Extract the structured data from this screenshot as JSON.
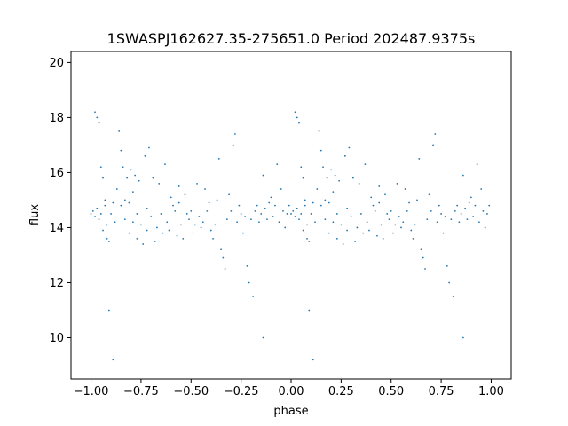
{
  "chart_data": {
    "type": "scatter",
    "title": "1SWASPJ162627.35-275651.0 Period 202487.9375s",
    "xlabel": "phase",
    "ylabel": "flux",
    "xlim": [
      -1.1,
      1.1
    ],
    "ylim": [
      8.5,
      20.4
    ],
    "xticks": [
      -1.0,
      -0.75,
      -0.5,
      -0.25,
      0.0,
      0.25,
      0.5,
      0.75,
      1.0
    ],
    "xtick_labels": [
      "−1.00",
      "−0.75",
      "−0.50",
      "−0.25",
      "0.00",
      "0.25",
      "0.50",
      "0.75",
      "1.00"
    ],
    "yticks": [
      10,
      12,
      14,
      16,
      18,
      20
    ],
    "ytick_labels": [
      "10",
      "12",
      "14",
      "16",
      "18",
      "20"
    ],
    "grid": false,
    "marker_color": "#1f77b4",
    "series": [
      {
        "points_phase_0_to_1": [
          [
            0.0,
            14.5
          ],
          [
            0.01,
            14.6
          ],
          [
            0.02,
            14.4
          ],
          [
            0.02,
            18.2
          ],
          [
            0.03,
            18.0
          ],
          [
            0.03,
            14.7
          ],
          [
            0.04,
            17.8
          ],
          [
            0.04,
            14.3
          ],
          [
            0.05,
            16.2
          ],
          [
            0.05,
            14.5
          ],
          [
            0.06,
            15.8
          ],
          [
            0.06,
            13.9
          ],
          [
            0.07,
            15.0
          ],
          [
            0.07,
            14.8
          ],
          [
            0.08,
            13.6
          ],
          [
            0.08,
            14.1
          ],
          [
            0.09,
            13.5
          ],
          [
            0.09,
            11.0
          ],
          [
            0.1,
            14.5
          ],
          [
            0.11,
            14.9
          ],
          [
            0.11,
            9.2
          ],
          [
            0.12,
            14.2
          ],
          [
            0.13,
            15.4
          ],
          [
            0.14,
            17.5
          ],
          [
            0.15,
            16.8
          ],
          [
            0.15,
            14.8
          ],
          [
            0.16,
            16.2
          ],
          [
            0.17,
            15.0
          ],
          [
            0.17,
            14.3
          ],
          [
            0.18,
            15.8
          ],
          [
            0.19,
            14.9
          ],
          [
            0.19,
            13.8
          ],
          [
            0.2,
            16.1
          ],
          [
            0.21,
            15.3
          ],
          [
            0.21,
            14.2
          ],
          [
            0.22,
            15.9
          ],
          [
            0.23,
            14.5
          ],
          [
            0.23,
            13.6
          ],
          [
            0.24,
            15.7
          ],
          [
            0.25,
            14.1
          ],
          [
            0.26,
            13.4
          ],
          [
            0.27,
            16.6
          ],
          [
            0.28,
            14.7
          ],
          [
            0.28,
            13.9
          ],
          [
            0.29,
            16.9
          ],
          [
            0.3,
            14.4
          ],
          [
            0.31,
            15.8
          ],
          [
            0.32,
            13.5
          ],
          [
            0.33,
            14.0
          ],
          [
            0.34,
            15.6
          ],
          [
            0.35,
            14.5
          ],
          [
            0.36,
            13.8
          ],
          [
            0.37,
            16.3
          ],
          [
            0.38,
            14.2
          ],
          [
            0.39,
            13.9
          ],
          [
            0.4,
            15.1
          ],
          [
            0.41,
            14.8
          ],
          [
            0.42,
            14.6
          ],
          [
            0.43,
            13.7
          ],
          [
            0.44,
            15.5
          ],
          [
            0.44,
            14.9
          ],
          [
            0.45,
            14.1
          ],
          [
            0.46,
            13.6
          ],
          [
            0.47,
            15.2
          ],
          [
            0.48,
            14.5
          ],
          [
            0.49,
            14.3
          ],
          [
            0.5,
            14.6
          ],
          [
            0.51,
            13.8
          ],
          [
            0.52,
            14.1
          ],
          [
            0.53,
            15.6
          ],
          [
            0.54,
            14.4
          ],
          [
            0.55,
            14.0
          ],
          [
            0.56,
            14.2
          ],
          [
            0.57,
            15.4
          ],
          [
            0.58,
            14.6
          ],
          [
            0.59,
            14.9
          ],
          [
            0.6,
            13.9
          ],
          [
            0.61,
            13.6
          ],
          [
            0.62,
            14.1
          ],
          [
            0.63,
            15.0
          ],
          [
            0.64,
            16.5
          ],
          [
            0.65,
            13.2
          ],
          [
            0.66,
            12.9
          ],
          [
            0.67,
            12.5
          ],
          [
            0.68,
            14.3
          ],
          [
            0.69,
            15.2
          ],
          [
            0.7,
            14.6
          ],
          [
            0.71,
            17.0
          ],
          [
            0.72,
            17.4
          ],
          [
            0.73,
            14.2
          ],
          [
            0.74,
            14.8
          ],
          [
            0.75,
            14.5
          ],
          [
            0.76,
            13.8
          ],
          [
            0.77,
            14.4
          ],
          [
            0.78,
            12.6
          ],
          [
            0.79,
            12.0
          ],
          [
            0.8,
            14.3
          ],
          [
            0.81,
            11.5
          ],
          [
            0.82,
            14.6
          ],
          [
            0.83,
            14.8
          ],
          [
            0.84,
            14.2
          ],
          [
            0.85,
            14.5
          ],
          [
            0.86,
            15.9
          ],
          [
            0.86,
            10.0
          ],
          [
            0.87,
            14.7
          ],
          [
            0.88,
            14.3
          ],
          [
            0.89,
            14.9
          ],
          [
            0.9,
            15.1
          ],
          [
            0.91,
            14.4
          ],
          [
            0.92,
            14.8
          ],
          [
            0.93,
            16.3
          ],
          [
            0.94,
            14.2
          ],
          [
            0.95,
            15.4
          ],
          [
            0.96,
            14.6
          ],
          [
            0.97,
            14.0
          ],
          [
            0.98,
            14.5
          ],
          [
            0.99,
            14.8
          ]
        ],
        "mirrored_to_phase_minus_1_to_0": true
      }
    ]
  }
}
